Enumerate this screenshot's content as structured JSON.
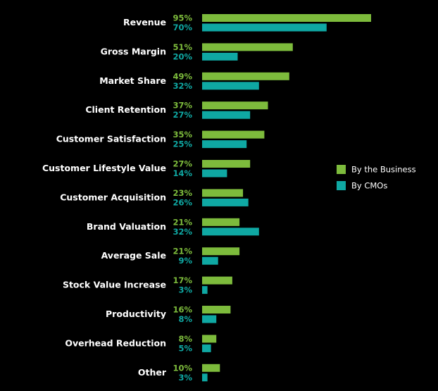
{
  "chart_data": {
    "type": "bar",
    "orientation": "horizontal",
    "categories": [
      "Revenue",
      "Gross Margin",
      "Market Share",
      "Client Retention",
      "Customer Satisfaction",
      "Customer Lifestyle Value",
      "Customer Acquisition",
      "Brand Valuation",
      "Average Sale",
      "Stock Value Increase",
      "Productivity",
      "Overhead Reduction",
      "Other"
    ],
    "series": [
      {
        "name": "By the Business",
        "color": "#7dbb3c",
        "values": [
          95,
          51,
          49,
          37,
          35,
          27,
          23,
          21,
          21,
          17,
          16,
          8,
          10
        ],
        "labels": [
          "95%",
          "51%",
          "49%",
          "37%",
          "35%",
          "27%",
          "23%",
          "21%",
          "21%",
          "17%",
          "16%",
          "8%",
          "10%"
        ]
      },
      {
        "name": "By CMOs",
        "color": "#0fa8a3",
        "values": [
          70,
          20,
          32,
          27,
          25,
          14,
          26,
          32,
          9,
          3,
          8,
          5,
          3
        ],
        "labels": [
          "70%",
          "20%",
          "32%",
          "27%",
          "25%",
          "14%",
          "26%",
          "32%",
          "9%",
          "3%",
          "8%",
          "5%",
          "3%"
        ]
      }
    ],
    "xlim": [
      0,
      100
    ],
    "grid": false,
    "legend": "right",
    "title": "",
    "xlabel": "",
    "ylabel": ""
  }
}
